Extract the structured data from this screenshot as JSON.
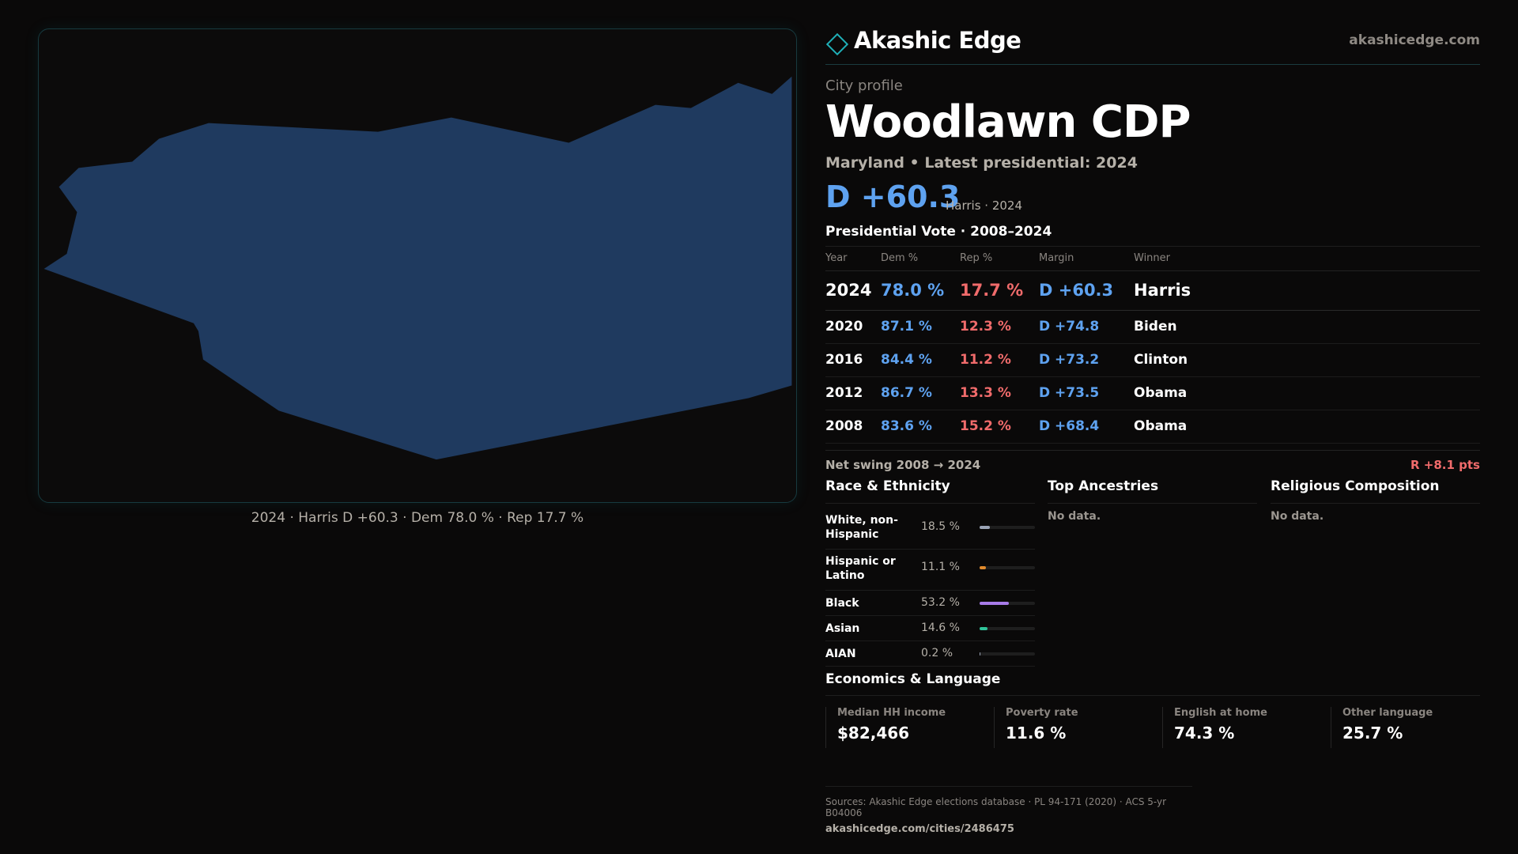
{
  "brand": {
    "name": "Akashic Edge",
    "site": "akashicedge.com"
  },
  "profile": {
    "kicker": "City profile",
    "title": "Woodlawn CDP",
    "subtitle": "Maryland • Latest presidential: 2024",
    "margin": "D +60.3",
    "margin_note": "Harris · 2024"
  },
  "map": {
    "caption": "2024 · Harris D +60.3 · Dem 78.0 % · Rep 17.7 %",
    "fill_color": "#1f3a5f"
  },
  "votes": {
    "title": "Presidential Vote · 2008–2024",
    "headers": [
      "Year",
      "Dem %",
      "Rep %",
      "Margin",
      "Winner"
    ],
    "rows": [
      {
        "year": "2024",
        "dem": "78.0 %",
        "rep": "17.7 %",
        "margin": "D +60.3",
        "winner": "Harris"
      },
      {
        "year": "2020",
        "dem": "87.1 %",
        "rep": "12.3 %",
        "margin": "D +74.8",
        "winner": "Biden"
      },
      {
        "year": "2016",
        "dem": "84.4 %",
        "rep": "11.2 %",
        "margin": "D +73.2",
        "winner": "Clinton"
      },
      {
        "year": "2012",
        "dem": "86.7 %",
        "rep": "13.3 %",
        "margin": "D +73.5",
        "winner": "Obama"
      },
      {
        "year": "2008",
        "dem": "83.6 %",
        "rep": "15.2 %",
        "margin": "D +68.4",
        "winner": "Obama"
      }
    ]
  },
  "swing": {
    "label": "Net swing 2008 → 2024",
    "value": "R +8.1 pts"
  },
  "race": {
    "title": "Race & Ethnicity",
    "rows": [
      {
        "name": "White, non-Hispanic",
        "pct": "18.5 %",
        "share": 0.185,
        "color": "#9aa3b5"
      },
      {
        "name": "Hispanic or Latino",
        "pct": "11.1 %",
        "share": 0.111,
        "color": "#e08a2c"
      },
      {
        "name": "Black",
        "pct": "53.2 %",
        "share": 0.532,
        "color": "#a77be8"
      },
      {
        "name": "Asian",
        "pct": "14.6 %",
        "share": 0.146,
        "color": "#2fc49a"
      },
      {
        "name": "AIAN",
        "pct": "0.2 %",
        "share": 0.002,
        "color": "#9aa3b5"
      }
    ]
  },
  "ancestries": {
    "title": "Top Ancestries",
    "empty": "No data."
  },
  "religion": {
    "title": "Religious Composition",
    "empty": "No data."
  },
  "economics": {
    "title": "Economics & Language",
    "cells": [
      {
        "label": "Median HH income",
        "value": "$82,466"
      },
      {
        "label": "Poverty rate",
        "value": "11.6 %"
      },
      {
        "label": "English at home",
        "value": "74.3 %"
      },
      {
        "label": "Other language",
        "value": "25.7 %"
      }
    ]
  },
  "footer": {
    "sources": "Sources: Akashic Edge elections database · PL 94-171 (2020) · ACS 5-yr B04006",
    "url": "akashicedge.com/cities/2486475"
  }
}
